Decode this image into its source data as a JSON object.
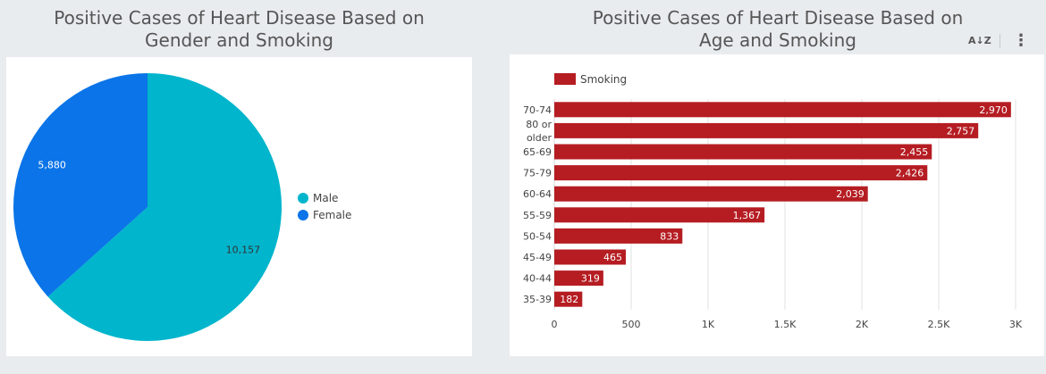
{
  "titles": {
    "left": "Positive Cases of Heart Disease Based on\nGender and Smoking",
    "right": "Positive Cases of Heart Disease  Based on\nAge and Smoking"
  },
  "toolbar": {
    "sort_icon": "sort-az-icon",
    "sort_label": "A↓Z",
    "more_icon": "more-vert-icon",
    "more_label": "⋮"
  },
  "colors": {
    "male": "#00b5cc",
    "female": "#0a74e8",
    "smoking": "#b51d22"
  },
  "chart_data": [
    {
      "type": "pie",
      "title": "Positive Cases of Heart Disease Based on Gender and Smoking",
      "categories": [
        "Male",
        "Female"
      ],
      "values": [
        10157,
        5880
      ],
      "labels": [
        "10,157",
        "5,880"
      ],
      "legend": {
        "position": "right",
        "entries": [
          "Male",
          "Female"
        ]
      }
    },
    {
      "type": "bar",
      "orientation": "horizontal",
      "title": "Positive Cases of Heart Disease  Based on Age and Smoking",
      "categories": [
        "70-74",
        "80 or older",
        "65-69",
        "75-79",
        "60-64",
        "55-59",
        "50-54",
        "45-49",
        "40-44",
        "35-39"
      ],
      "series": [
        {
          "name": "Smoking",
          "values": [
            2970,
            2757,
            2455,
            2426,
            2039,
            1367,
            833,
            465,
            319,
            182
          ]
        }
      ],
      "value_labels": [
        "2,970",
        "2,757",
        "2,455",
        "2,426",
        "2,039",
        "1,367",
        "833",
        "465",
        "319",
        "182"
      ],
      "xlim": [
        0,
        3000
      ],
      "x_ticks": [
        0,
        500,
        1000,
        1500,
        2000,
        2500,
        3000
      ],
      "x_tick_labels": [
        "0",
        "500",
        "1K",
        "1.5K",
        "2K",
        "2.5K",
        "3K"
      ],
      "grid": true,
      "legend": {
        "position": "top-left",
        "entries": [
          "Smoking"
        ]
      }
    }
  ]
}
